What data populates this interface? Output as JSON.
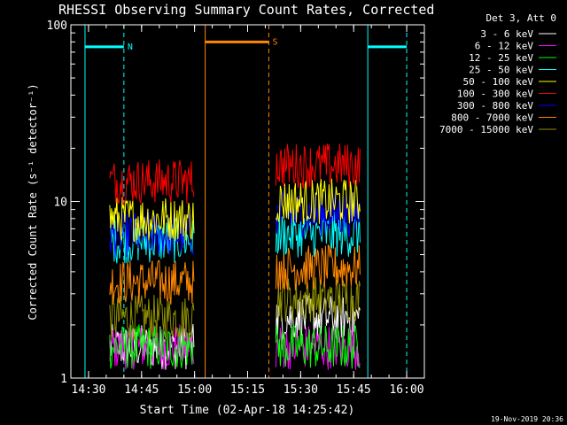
{
  "chart_data": {
    "type": "line",
    "title": "RHESSI Observing Summary Count Rates, Corrected",
    "xlabel": "Start Time (02-Apr-18 14:25:42)",
    "ylabel": "Corrected Count Rate (s⁻¹ detector⁻¹)",
    "yscale": "log",
    "ylim": [
      1,
      100
    ],
    "xlim_minutes_after_1430": [
      -5,
      95
    ],
    "x_ticks": [
      "14:30",
      "14:45",
      "15:00",
      "15:15",
      "15:30",
      "15:45",
      "16:00"
    ],
    "y_ticks": [
      "1",
      "10",
      "100"
    ],
    "legend_header": "Det 3, Att 0",
    "legend_position": "top-right",
    "footer_date": "19-Nov-2019 20:36",
    "series": [
      {
        "name": "3 - 6 keV",
        "color": "#ffffff"
      },
      {
        "name": "6 - 12 keV",
        "color": "#ff00ff"
      },
      {
        "name": "12 - 25 keV",
        "color": "#00ff00"
      },
      {
        "name": "25 - 50 keV",
        "color": "#00ffff"
      },
      {
        "name": "50 - 100 keV",
        "color": "#ffff00"
      },
      {
        "name": "100 - 300 keV",
        "color": "#ff0000"
      },
      {
        "name": "300 - 800 keV",
        "color": "#0000ff"
      },
      {
        "name": "800 - 7000 keV",
        "color": "#ff8800"
      },
      {
        "name": "7000 - 15000 keV",
        "color": "#909000"
      }
    ],
    "data_intervals": [
      {
        "start": "14:36",
        "end": "15:00",
        "levels": {
          "3 - 6 keV": 1.5,
          "6 - 12 keV": 1.5,
          "12 - 25 keV": 1.5,
          "25 - 50 keV": 6,
          "50 - 100 keV": 8,
          "100 - 300 keV": 13,
          "300 - 800 keV": 6.5,
          "800 - 7000 keV": 3.5,
          "7000 - 15000 keV": 2.2
        }
      },
      {
        "start": "15:23",
        "end": "15:47",
        "levels": {
          "3 - 6 keV": 2.2,
          "6 - 12 keV": 1.5,
          "12 - 25 keV": 1.5,
          "25 - 50 keV": 6.5,
          "50 - 100 keV": 10,
          "100 - 300 keV": 16,
          "300 - 800 keV": 8.5,
          "800 - 7000 keV": 4.2,
          "7000 - 15000 keV": 2.8
        }
      }
    ],
    "flag_bars": [
      {
        "label": "N",
        "color": "#00ffff",
        "level": 75,
        "start": "14:29",
        "end": "14:40"
      },
      {
        "label": "",
        "color": "#00ffff",
        "level": 75,
        "start": "15:49",
        "end": "16:00"
      },
      {
        "label": "S",
        "color": "#ff8800",
        "level": 80,
        "start": "15:03",
        "end": "15:21"
      }
    ],
    "vertical_markers": [
      {
        "time": "14:29",
        "color": "#00ffff",
        "style": "solid"
      },
      {
        "time": "14:40",
        "color": "#00ffff",
        "style": "dashed"
      },
      {
        "time": "15:03",
        "color": "#ff8800",
        "style": "solid"
      },
      {
        "time": "15:21",
        "color": "#ff8800",
        "style": "dashed"
      },
      {
        "time": "15:49",
        "color": "#00ffff",
        "style": "solid"
      },
      {
        "time": "16:00",
        "color": "#00ffff",
        "style": "dashed"
      }
    ]
  }
}
